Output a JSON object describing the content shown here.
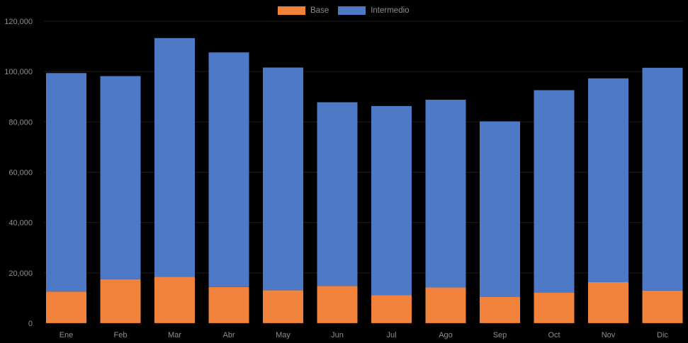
{
  "chart_data": {
    "type": "bar",
    "stacked": true,
    "title": "",
    "xlabel": "",
    "ylabel": "",
    "categories": [
      "Ene",
      "Feb",
      "Mar",
      "Abr",
      "May",
      "Jun",
      "Jul",
      "Ago",
      "Sep",
      "Oct",
      "Nov",
      "Dic"
    ],
    "series": [
      {
        "name": "Base",
        "color": "#F0823C",
        "values": [
          12600,
          17500,
          18500,
          14400,
          13100,
          14800,
          11200,
          14200,
          10500,
          12200,
          16300,
          13000
        ]
      },
      {
        "name": "Intermedio",
        "color": "#4D79C7",
        "values": [
          86800,
          80700,
          94800,
          93200,
          88500,
          73000,
          75100,
          74600,
          69700,
          80400,
          81000,
          88500
        ]
      }
    ],
    "totals": [
      99400,
      98200,
      113300,
      107600,
      101600,
      87800,
      86300,
      88800,
      80200,
      92600,
      97300,
      101500
    ],
    "ylim": [
      0,
      120000
    ],
    "ytick_step": 20000,
    "ytick_labels": [
      "0",
      "20,000",
      "40,000",
      "60,000",
      "80,000",
      "100,000",
      "120,000"
    ],
    "legend_position": "top-center",
    "grid": false,
    "background_color": "#000000",
    "text_color": "#8E8E8E",
    "gridline_color": "#1C1C1C"
  }
}
